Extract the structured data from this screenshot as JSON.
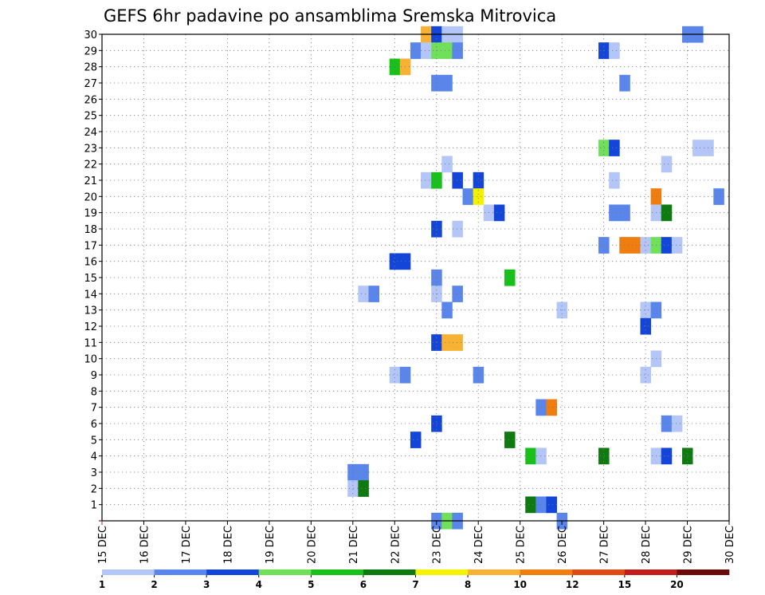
{
  "chart_data": {
    "type": "heatmap",
    "title": "GEFS 6hr padavine po ansamblima Sremska Mitrovica",
    "xlabel": "",
    "ylabel": "",
    "x_ticks": [
      "15 DEC",
      "16 DEC",
      "17 DEC",
      "18 DEC",
      "19 DEC",
      "20 DEC",
      "21 DEC",
      "22 DEC",
      "23 DEC",
      "24 DEC",
      "25 DEC",
      "26 DEC",
      "27 DEC",
      "28 DEC",
      "29 DEC",
      "30 DEC"
    ],
    "x_range_days": [
      15,
      30
    ],
    "y_ticks": [
      "1",
      "2",
      "3",
      "4",
      "5",
      "6",
      "7",
      "8",
      "9",
      "10",
      "11",
      "12",
      "13",
      "14",
      "15",
      "16",
      "17",
      "18",
      "19",
      "20",
      "21",
      "22",
      "23",
      "24",
      "25",
      "26",
      "27",
      "28",
      "29",
      "30"
    ],
    "y_range": [
      0,
      30
    ],
    "grid": true,
    "colorbar": {
      "labels": [
        "1",
        "2",
        "3",
        "4",
        "5",
        "6",
        "7",
        "8",
        "10",
        "12",
        "15",
        "20"
      ],
      "colors": [
        "#b3c6f7",
        "#5a85ea",
        "#1346d8",
        "#70e05a",
        "#18c01a",
        "#0f7a10",
        "#f5f200",
        "#f7b233",
        "#f07d10",
        "#e04a14",
        "#c01c1c",
        "#6b0a0a"
      ]
    },
    "cells": [
      {
        "member": 30,
        "t": 22.75,
        "bin": 7
      },
      {
        "member": 30,
        "t": 23.0,
        "bin": 2
      },
      {
        "member": 30,
        "t": 23.25,
        "bin": 0
      },
      {
        "member": 30,
        "t": 23.5,
        "bin": 0
      },
      {
        "member": 30,
        "t": 29.0,
        "bin": 1
      },
      {
        "member": 30,
        "t": 29.25,
        "bin": 1
      },
      {
        "member": 29,
        "t": 22.5,
        "bin": 1
      },
      {
        "member": 29,
        "t": 22.75,
        "bin": 0
      },
      {
        "member": 29,
        "t": 23.0,
        "bin": 3
      },
      {
        "member": 29,
        "t": 23.25,
        "bin": 3
      },
      {
        "member": 29,
        "t": 23.5,
        "bin": 1
      },
      {
        "member": 29,
        "t": 27.0,
        "bin": 2
      },
      {
        "member": 29,
        "t": 27.25,
        "bin": 0
      },
      {
        "member": 28,
        "t": 22.0,
        "bin": 4
      },
      {
        "member": 28,
        "t": 22.25,
        "bin": 7
      },
      {
        "member": 27,
        "t": 23.0,
        "bin": 1
      },
      {
        "member": 27,
        "t": 23.25,
        "bin": 1
      },
      {
        "member": 27,
        "t": 27.5,
        "bin": 1
      },
      {
        "member": 23,
        "t": 27.0,
        "bin": 3
      },
      {
        "member": 23,
        "t": 27.25,
        "bin": 2
      },
      {
        "member": 23,
        "t": 29.25,
        "bin": 0
      },
      {
        "member": 23,
        "t": 29.5,
        "bin": 0
      },
      {
        "member": 22,
        "t": 23.25,
        "bin": 0
      },
      {
        "member": 22,
        "t": 28.5,
        "bin": 0
      },
      {
        "member": 21,
        "t": 22.75,
        "bin": 0
      },
      {
        "member": 21,
        "t": 23.0,
        "bin": 4
      },
      {
        "member": 21,
        "t": 23.5,
        "bin": 2
      },
      {
        "member": 21,
        "t": 24.0,
        "bin": 2
      },
      {
        "member": 21,
        "t": 27.25,
        "bin": 0
      },
      {
        "member": 20,
        "t": 23.75,
        "bin": 1
      },
      {
        "member": 20,
        "t": 24.0,
        "bin": 6
      },
      {
        "member": 20,
        "t": 28.25,
        "bin": 8
      },
      {
        "member": 20,
        "t": 29.75,
        "bin": 1
      },
      {
        "member": 19,
        "t": 24.25,
        "bin": 0
      },
      {
        "member": 19,
        "t": 24.5,
        "bin": 2
      },
      {
        "member": 19,
        "t": 27.25,
        "bin": 1
      },
      {
        "member": 19,
        "t": 27.5,
        "bin": 1
      },
      {
        "member": 19,
        "t": 28.25,
        "bin": 0
      },
      {
        "member": 19,
        "t": 28.5,
        "bin": 5
      },
      {
        "member": 18,
        "t": 23.0,
        "bin": 2
      },
      {
        "member": 18,
        "t": 23.5,
        "bin": 0
      },
      {
        "member": 17,
        "t": 27.0,
        "bin": 1
      },
      {
        "member": 17,
        "t": 27.5,
        "bin": 8
      },
      {
        "member": 17,
        "t": 27.75,
        "bin": 8
      },
      {
        "member": 17,
        "t": 28.0,
        "bin": 0
      },
      {
        "member": 17,
        "t": 28.25,
        "bin": 3
      },
      {
        "member": 17,
        "t": 28.5,
        "bin": 2
      },
      {
        "member": 17,
        "t": 28.75,
        "bin": 0
      },
      {
        "member": 16,
        "t": 22.0,
        "bin": 2
      },
      {
        "member": 16,
        "t": 22.25,
        "bin": 2
      },
      {
        "member": 15,
        "t": 23.0,
        "bin": 1
      },
      {
        "member": 15,
        "t": 24.75,
        "bin": 4
      },
      {
        "member": 14,
        "t": 21.25,
        "bin": 0
      },
      {
        "member": 14,
        "t": 21.5,
        "bin": 1
      },
      {
        "member": 14,
        "t": 23.0,
        "bin": 0
      },
      {
        "member": 14,
        "t": 23.5,
        "bin": 1
      },
      {
        "member": 13,
        "t": 23.25,
        "bin": 1
      },
      {
        "member": 13,
        "t": 26.0,
        "bin": 0
      },
      {
        "member": 13,
        "t": 28.0,
        "bin": 0
      },
      {
        "member": 13,
        "t": 28.25,
        "bin": 1
      },
      {
        "member": 12,
        "t": 28.0,
        "bin": 2
      },
      {
        "member": 11,
        "t": 23.0,
        "bin": 2
      },
      {
        "member": 11,
        "t": 23.25,
        "bin": 7
      },
      {
        "member": 11,
        "t": 23.5,
        "bin": 7
      },
      {
        "member": 10,
        "t": 28.25,
        "bin": 0
      },
      {
        "member": 9,
        "t": 22.0,
        "bin": 0
      },
      {
        "member": 9,
        "t": 22.25,
        "bin": 1
      },
      {
        "member": 9,
        "t": 24.0,
        "bin": 1
      },
      {
        "member": 9,
        "t": 28.0,
        "bin": 0
      },
      {
        "member": 7,
        "t": 25.5,
        "bin": 1
      },
      {
        "member": 7,
        "t": 25.75,
        "bin": 8
      },
      {
        "member": 6,
        "t": 23.0,
        "bin": 2
      },
      {
        "member": 6,
        "t": 28.5,
        "bin": 1
      },
      {
        "member": 6,
        "t": 28.75,
        "bin": 0
      },
      {
        "member": 5,
        "t": 22.5,
        "bin": 2
      },
      {
        "member": 5,
        "t": 24.75,
        "bin": 5
      },
      {
        "member": 4,
        "t": 25.25,
        "bin": 4
      },
      {
        "member": 4,
        "t": 25.5,
        "bin": 0
      },
      {
        "member": 4,
        "t": 27.0,
        "bin": 5
      },
      {
        "member": 4,
        "t": 28.25,
        "bin": 0
      },
      {
        "member": 4,
        "t": 28.5,
        "bin": 2
      },
      {
        "member": 4,
        "t": 29.0,
        "bin": 5
      },
      {
        "member": 3,
        "t": 21.0,
        "bin": 1
      },
      {
        "member": 3,
        "t": 21.25,
        "bin": 1
      },
      {
        "member": 2,
        "t": 21.0,
        "bin": 0
      },
      {
        "member": 2,
        "t": 21.25,
        "bin": 5
      },
      {
        "member": 1,
        "t": 25.25,
        "bin": 5
      },
      {
        "member": 1,
        "t": 25.5,
        "bin": 1
      },
      {
        "member": 1,
        "t": 25.75,
        "bin": 2
      },
      {
        "member": 0,
        "t": 23.0,
        "bin": 1
      },
      {
        "member": 0,
        "t": 23.25,
        "bin": 3
      },
      {
        "member": 0,
        "t": 23.5,
        "bin": 1
      },
      {
        "member": 0,
        "t": 26.0,
        "bin": 1
      }
    ]
  }
}
